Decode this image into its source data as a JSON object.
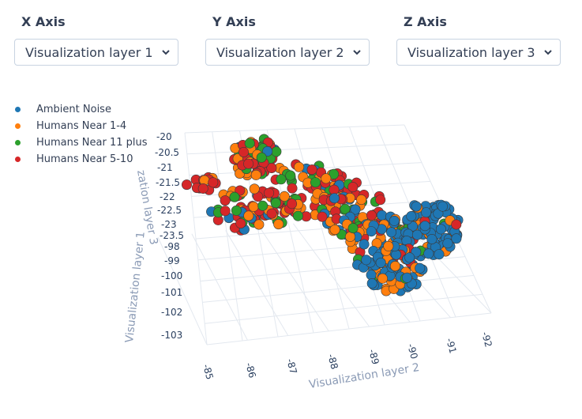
{
  "controls": [
    {
      "label": "X Axis",
      "selected": "Visualization layer 1"
    },
    {
      "label": "Y Axis",
      "selected": "Visualization layer 2"
    },
    {
      "label": "Z Axis",
      "selected": "Visualization layer 3"
    }
  ],
  "chart_data": {
    "type": "scatter",
    "dimensions": 3,
    "x_axis_title": "Visualization layer 2",
    "y_axis_title": "zation layer 3",
    "z_axis_title": "Visualization layer 1",
    "x_ticks": [
      "-85",
      "-86",
      "-87",
      "-88",
      "-89",
      "-90",
      "-91",
      "-92"
    ],
    "y_ticks_upper": [
      "-20",
      "-20.5",
      "-21",
      "-21.5",
      "-22",
      "-22.5",
      "-23",
      "-23.5"
    ],
    "y_ticks_lower": [
      "-98",
      "-99",
      "-100",
      "-101",
      "-102",
      "-103"
    ],
    "series": [
      {
        "name": "Ambient Noise",
        "color": "#1f77b4"
      },
      {
        "name": "Humans Near 1-4",
        "color": "#ff7f0e"
      },
      {
        "name": "Humans Near 11 plus",
        "color": "#2ca02c"
      },
      {
        "name": "Humans Near 5-10",
        "color": "#d62728"
      }
    ]
  }
}
